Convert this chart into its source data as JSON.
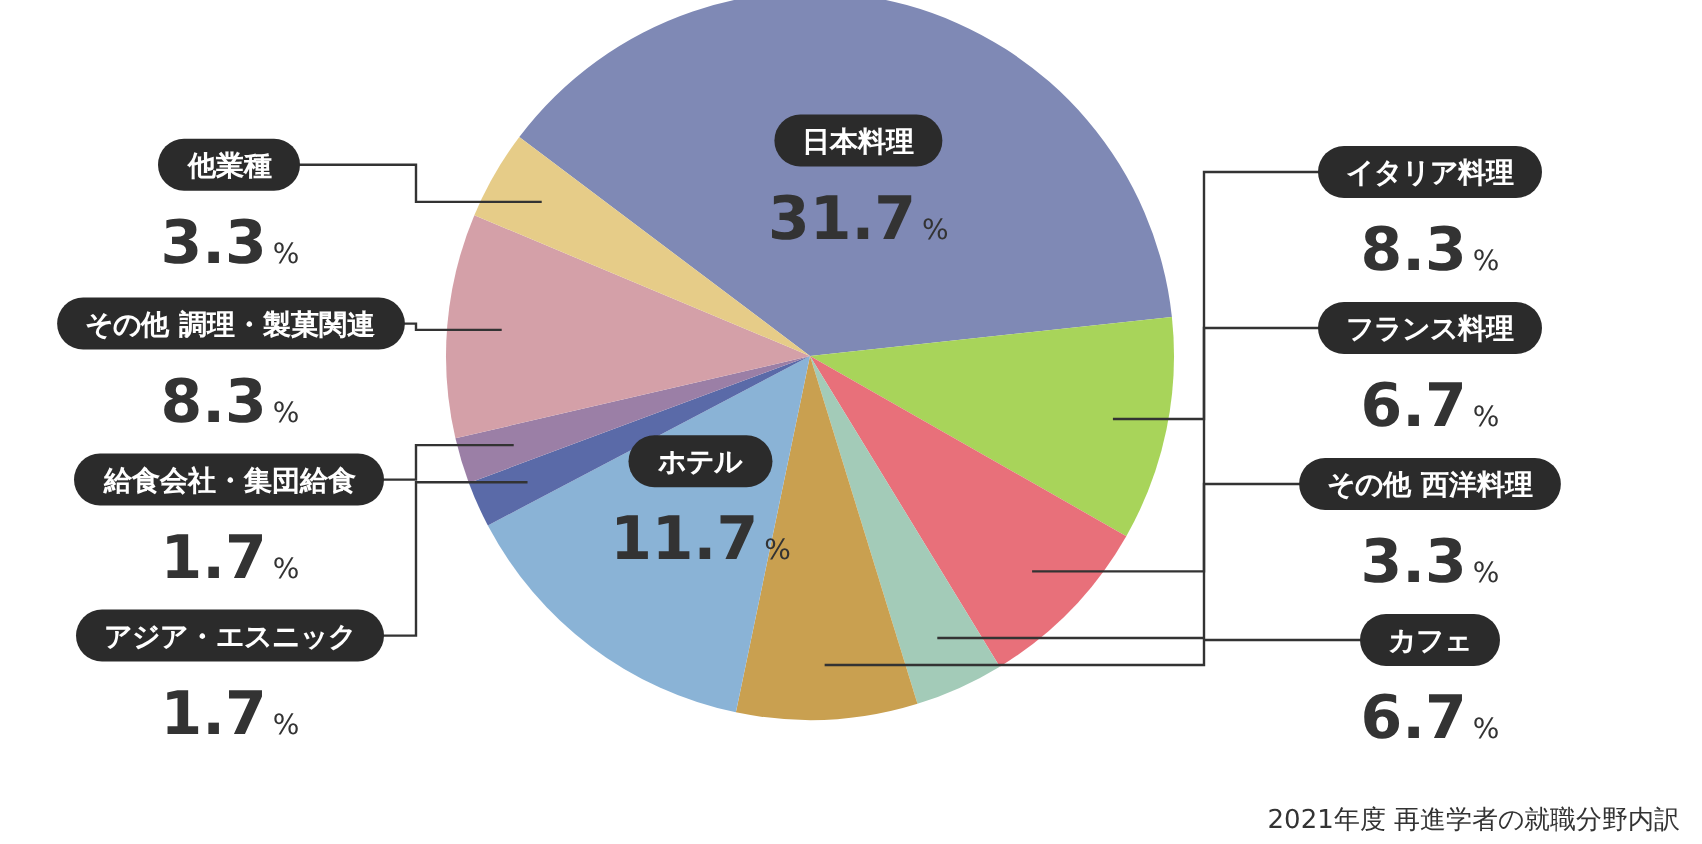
{
  "chart_data": {
    "type": "pie",
    "categories": [
      "日本料理",
      "イタリア料理",
      "フランス料理",
      "その他 西洋料理",
      "カフェ",
      "ホテル",
      "アジア・エスニック",
      "給食会社・集団給食",
      "その他 調理・製菓関連",
      "他業種"
    ],
    "values": [
      31.7,
      8.3,
      6.7,
      3.3,
      6.7,
      11.7,
      1.7,
      1.7,
      8.3,
      3.3
    ],
    "colors": [
      "#7f89b5",
      "#a8d45a",
      "#e8707a",
      "#a3cbb8",
      "#c9a050",
      "#8ab3d6",
      "#5a6aa8",
      "#9b7fa6",
      "#d4a0a8",
      "#e6cc88"
    ],
    "value_labels": [
      "31.7%",
      "8.3%",
      "6.7%",
      "3.3%",
      "6.7%",
      "11.7%",
      "1.7%",
      "1.7%",
      "8.3%",
      "3.3%"
    ],
    "annotations": [
      "2021年度 再進学者の就職分野内訳"
    ]
  }
}
